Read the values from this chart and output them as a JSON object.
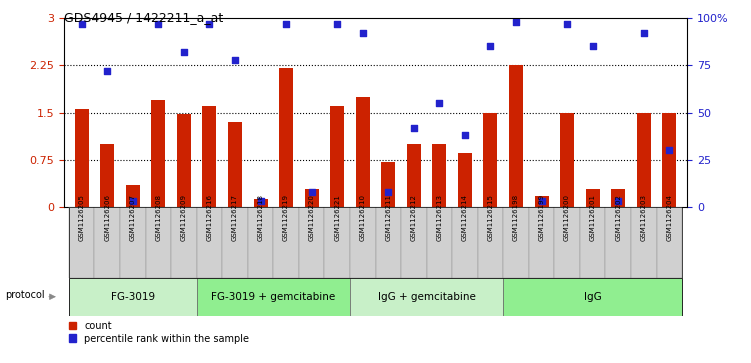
{
  "title": "GDS4945 / 1422211_a_at",
  "samples": [
    "GSM1126205",
    "GSM1126206",
    "GSM1126207",
    "GSM1126208",
    "GSM1126209",
    "GSM1126216",
    "GSM1126217",
    "GSM1126218",
    "GSM1126219",
    "GSM1126220",
    "GSM1126221",
    "GSM1126210",
    "GSM1126211",
    "GSM1126212",
    "GSM1126213",
    "GSM1126214",
    "GSM1126215",
    "GSM1126198",
    "GSM1126199",
    "GSM1126200",
    "GSM1126201",
    "GSM1126202",
    "GSM1126203",
    "GSM1126204"
  ],
  "counts": [
    1.55,
    1.0,
    0.35,
    1.7,
    1.47,
    1.6,
    1.35,
    0.12,
    2.2,
    0.28,
    1.6,
    1.75,
    0.72,
    1.0,
    1.0,
    0.85,
    1.5,
    2.25,
    0.18,
    1.5,
    0.28,
    0.28,
    1.5,
    1.5
  ],
  "percentiles": [
    97,
    72,
    3,
    97,
    82,
    97,
    78,
    3,
    97,
    8,
    97,
    92,
    8,
    42,
    55,
    38,
    85,
    98,
    3,
    97,
    85,
    3,
    92,
    30
  ],
  "groups": [
    {
      "label": "FG-3019",
      "start": 0,
      "end": 5
    },
    {
      "label": "FG-3019 + gemcitabine",
      "start": 5,
      "end": 11
    },
    {
      "label": "IgG + gemcitabine",
      "start": 11,
      "end": 17
    },
    {
      "label": "IgG",
      "start": 17,
      "end": 24
    }
  ],
  "group_colors": [
    "#c8f0c8",
    "#90ee90",
    "#c8f0c8",
    "#90ee90"
  ],
  "bar_color": "#cc2200",
  "dot_color": "#2222cc",
  "ylim_left": [
    0,
    3
  ],
  "ylim_right": [
    0,
    100
  ],
  "yticks_left": [
    0,
    0.75,
    1.5,
    2.25,
    3.0
  ],
  "ytick_labels_left": [
    "0",
    "0.75",
    "1.5",
    "2.25",
    "3"
  ],
  "yticks_right": [
    0,
    25,
    50,
    75,
    100
  ],
  "ytick_labels_right": [
    "0",
    "25",
    "50",
    "75",
    "100%"
  ],
  "hlines": [
    0.75,
    1.5,
    2.25
  ],
  "legend_count": "count",
  "legend_percentile": "percentile rank within the sample",
  "protocol_label": "protocol",
  "xtick_bg": "#d0d0d0"
}
